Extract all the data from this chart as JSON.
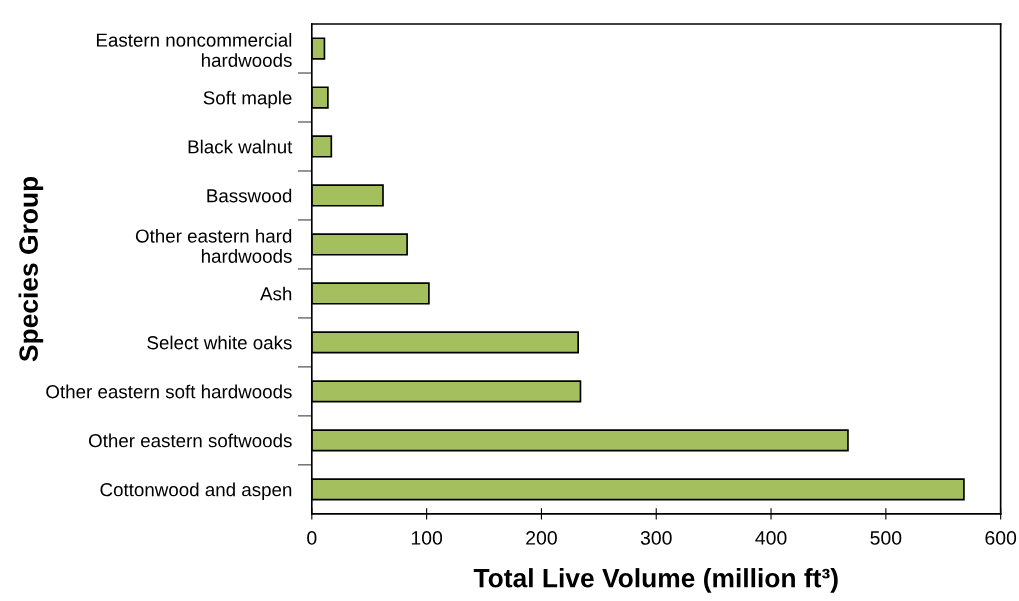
{
  "chart_data": {
    "type": "bar",
    "orientation": "horizontal",
    "xlabel": "Total Live Volume (million ft³)",
    "ylabel": "Species Group",
    "categories": [
      "Eastern noncommercial\nhardwoods",
      "Soft maple",
      "Black walnut",
      "Basswood",
      "Other eastern hard\nhardwoods",
      "Ash",
      "Select white oaks",
      "Other eastern soft hardwoods",
      "Other eastern softwoods",
      "Cottonwood and aspen"
    ],
    "values": [
      11,
      14,
      17,
      62,
      83,
      102,
      232,
      234,
      467,
      568
    ],
    "color": "#a3bf5e",
    "xlim": [
      0,
      600
    ],
    "xticks": [
      0,
      100,
      200,
      300,
      400,
      500,
      600
    ],
    "grid": false,
    "legend": false
  }
}
